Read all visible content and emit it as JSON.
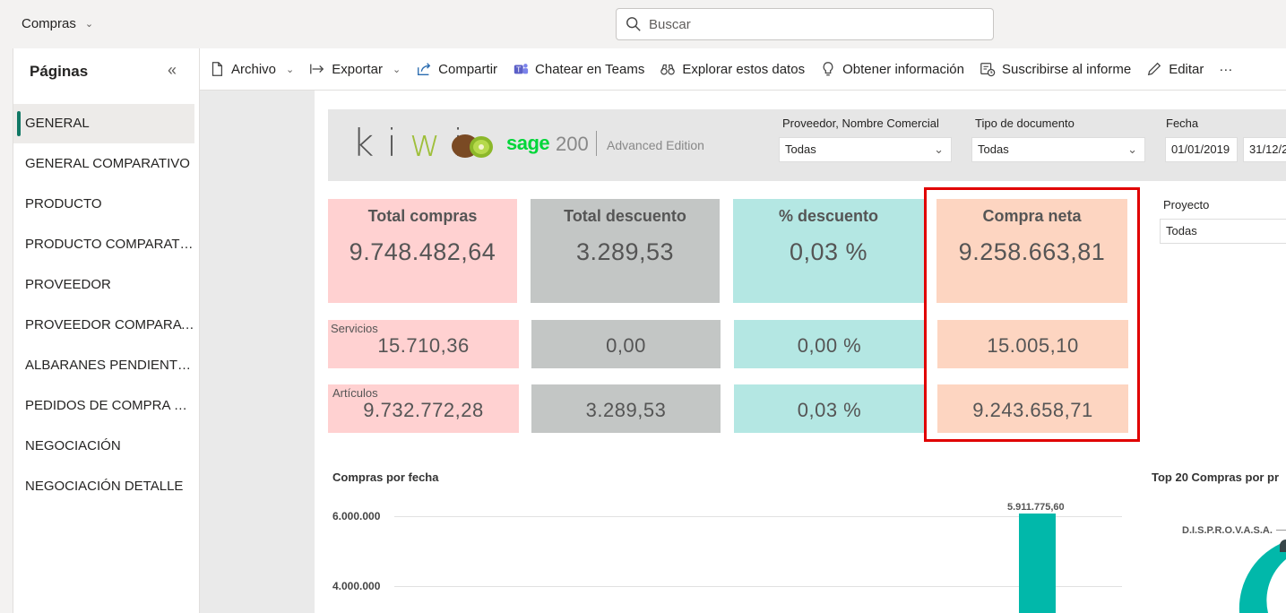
{
  "app": {
    "title": "Compras"
  },
  "search": {
    "placeholder": "Buscar"
  },
  "pages": {
    "title": "Páginas",
    "items": [
      {
        "label": "GENERAL"
      },
      {
        "label": "GENERAL COMPARATIVO"
      },
      {
        "label": "PRODUCTO"
      },
      {
        "label": "PRODUCTO COMPARATIVO"
      },
      {
        "label": "PROVEEDOR"
      },
      {
        "label": "PROVEEDOR COMPARATIVO"
      },
      {
        "label": "ALBARANES PENDIENTES"
      },
      {
        "label": "PEDIDOS DE COMPRA PENDIENTES"
      },
      {
        "label": "NEGOCIACIÓN"
      },
      {
        "label": "NEGOCIACIÓN DETALLE"
      }
    ]
  },
  "toolbar": {
    "archivo": "Archivo",
    "exportar": "Exportar",
    "compartir": "Compartir",
    "teams": "Chatear en Teams",
    "explorar": "Explorar estos datos",
    "obtener": "Obtener información",
    "suscribirse": "Suscribirse al informe",
    "editar": "Editar",
    "more": "···"
  },
  "header": {
    "kiwi_k": "k",
    "kiwi_i1": "i",
    "kiwi_w": "w",
    "kiwi_i2": "i",
    "sage": "sage",
    "sage200": "200",
    "edition": "Advanced Edition"
  },
  "slicers": {
    "proveedor": {
      "label": "Proveedor, Nombre Comercial",
      "value": "Todas"
    },
    "tipo": {
      "label": "Tipo de documento",
      "value": "Todas"
    },
    "fecha": {
      "label": "Fecha",
      "from": "01/01/2019",
      "to": "31/12/2"
    },
    "proyecto": {
      "label": "Proyecto",
      "value": "Todas"
    }
  },
  "kpis": {
    "total_compras": {
      "title": "Total compras",
      "value": "9.748.482,64",
      "servicios": "15.710,36",
      "articulos": "9.732.772,28"
    },
    "total_descuento": {
      "title": "Total descuento",
      "value": "3.289,53",
      "servicios": "0,00",
      "articulos": "3.289,53"
    },
    "pct_descuento": {
      "title": "% descuento",
      "value": "0,03 %",
      "servicios": "0,00 %",
      "articulos": "0,03 %"
    },
    "compra_neta": {
      "title": "Compra neta",
      "value": "9.258.663,81",
      "servicios": "15.005,10",
      "articulos": "9.243.658,71"
    },
    "labels": {
      "servicios": "Servicios",
      "articulos": "Artículos"
    }
  },
  "chart_compras": {
    "title": "Compras por fecha",
    "ticks": [
      "6.000.000",
      "4.000.000"
    ],
    "bar_label": "5.911.775,60"
  },
  "chart_top": {
    "title": "Top 20 Compras por pr",
    "label": "D.I.S.P.R.O.V.A.S.A."
  },
  "chart_data": [
    {
      "type": "bar",
      "title": "Compras por fecha",
      "xlabel": "",
      "ylabel": "",
      "ylim": [
        3000000,
        6500000
      ],
      "y_ticks": [
        4000000,
        6000000
      ],
      "categories": [
        "(visible bar)"
      ],
      "values": [
        5911775.6
      ],
      "grid": true
    },
    {
      "type": "pie",
      "title": "Top 20 Compras por pr",
      "labels": [
        "D.I.S.P.R.O.V.A.S.A."
      ]
    }
  ],
  "colors": {
    "accent": "#117865",
    "bar": "#01b8aa",
    "highlight": "#e00000"
  }
}
